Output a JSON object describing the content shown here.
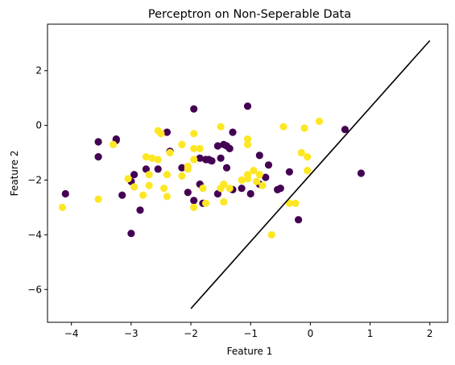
{
  "chart_data": {
    "type": "scatter",
    "title": "Perceptron on Non-Seperable Data",
    "xlabel": "Feature 1",
    "ylabel": "Feature 2",
    "xlim": [
      -4.4,
      2.3
    ],
    "ylim": [
      -7.2,
      3.7
    ],
    "xticks": [
      -4,
      -3,
      -2,
      -1,
      0,
      1,
      2
    ],
    "yticks": [
      -6,
      -4,
      -2,
      0,
      2
    ],
    "xtick_labels": [
      "−4",
      "−3",
      "−2",
      "−1",
      "0",
      "1",
      "2"
    ],
    "ytick_labels": [
      "−6",
      "−4",
      "−2",
      "0",
      "2"
    ],
    "grid": false,
    "colors": {
      "class_0": "#440154",
      "class_1": "#fde725",
      "line": "#000000"
    },
    "series": [
      {
        "color": "#440154",
        "points": [
          [
            -4.1,
            -2.5
          ],
          [
            -3.55,
            -0.6
          ],
          [
            -3.55,
            -1.15
          ],
          [
            -3.25,
            -0.5
          ],
          [
            -3.25,
            -0.55
          ],
          [
            -3.15,
            -2.55
          ],
          [
            -3.0,
            -2.05
          ],
          [
            -2.95,
            -1.8
          ],
          [
            -3.0,
            -3.95
          ],
          [
            -2.85,
            -3.1
          ],
          [
            -2.75,
            -1.6
          ],
          [
            -2.55,
            -1.6
          ],
          [
            -2.4,
            -0.25
          ],
          [
            -2.35,
            -0.95
          ],
          [
            -2.15,
            -1.55
          ],
          [
            -2.05,
            -2.45
          ],
          [
            -1.95,
            -2.75
          ],
          [
            -1.8,
            -2.85
          ],
          [
            -1.95,
            0.6
          ],
          [
            -1.85,
            -2.15
          ],
          [
            -1.85,
            -1.2
          ],
          [
            -1.75,
            -1.25
          ],
          [
            -1.7,
            -1.25
          ],
          [
            -1.65,
            -1.3
          ],
          [
            -1.55,
            -0.75
          ],
          [
            -1.45,
            -0.7
          ],
          [
            -1.4,
            -0.75
          ],
          [
            -1.35,
            -0.85
          ],
          [
            -1.5,
            -1.2
          ],
          [
            -1.4,
            -1.55
          ],
          [
            -1.55,
            -2.5
          ],
          [
            -1.3,
            -0.25
          ],
          [
            -1.3,
            -2.35
          ],
          [
            -1.15,
            -2.3
          ],
          [
            -1.05,
            0.7
          ],
          [
            -1.0,
            -2.5
          ],
          [
            -0.85,
            -1.1
          ],
          [
            -0.85,
            -2.15
          ],
          [
            -0.75,
            -1.9
          ],
          [
            -0.7,
            -1.45
          ],
          [
            -0.55,
            -2.35
          ],
          [
            -0.5,
            -2.3
          ],
          [
            -0.35,
            -1.7
          ],
          [
            -0.2,
            -3.45
          ],
          [
            0.58,
            -0.15
          ],
          [
            0.85,
            -1.75
          ]
        ]
      },
      {
        "color": "#fde725",
        "points": [
          [
            -4.15,
            -3.0
          ],
          [
            -3.55,
            -2.7
          ],
          [
            -3.3,
            -0.7
          ],
          [
            -3.05,
            -1.95
          ],
          [
            -2.95,
            -2.25
          ],
          [
            -2.8,
            -2.55
          ],
          [
            -2.75,
            -1.15
          ],
          [
            -2.7,
            -1.8
          ],
          [
            -2.65,
            -1.2
          ],
          [
            -2.7,
            -2.2
          ],
          [
            -2.55,
            -0.2
          ],
          [
            -2.5,
            -0.3
          ],
          [
            -2.55,
            -1.25
          ],
          [
            -2.45,
            -2.3
          ],
          [
            -2.4,
            -1.8
          ],
          [
            -2.4,
            -2.6
          ],
          [
            -2.35,
            -1.0
          ],
          [
            -2.15,
            -0.7
          ],
          [
            -2.15,
            -1.85
          ],
          [
            -2.05,
            -1.5
          ],
          [
            -2.05,
            -1.6
          ],
          [
            -1.95,
            -0.85
          ],
          [
            -1.95,
            -1.25
          ],
          [
            -1.95,
            -3.0
          ],
          [
            -1.95,
            -0.3
          ],
          [
            -1.85,
            -0.85
          ],
          [
            -1.8,
            -2.3
          ],
          [
            -1.75,
            -2.85
          ],
          [
            -1.5,
            -0.05
          ],
          [
            -1.5,
            -2.3
          ],
          [
            -1.45,
            -2.15
          ],
          [
            -1.45,
            -2.8
          ],
          [
            -1.35,
            -2.3
          ],
          [
            -1.15,
            -2.0
          ],
          [
            -1.05,
            -0.5
          ],
          [
            -1.05,
            -0.7
          ],
          [
            -1.05,
            -1.8
          ],
          [
            -1.05,
            -1.95
          ],
          [
            -0.9,
            -2.05
          ],
          [
            -0.85,
            -1.8
          ],
          [
            -0.8,
            -2.2
          ],
          [
            -0.65,
            -4.0
          ],
          [
            -0.45,
            -0.05
          ],
          [
            -0.35,
            -2.85
          ],
          [
            -0.25,
            -2.85
          ],
          [
            -0.15,
            -1.0
          ],
          [
            -0.1,
            -0.1
          ],
          [
            -0.05,
            -1.15
          ],
          [
            -0.05,
            -1.65
          ],
          [
            0.15,
            0.15
          ],
          [
            -0.95,
            -1.65
          ]
        ]
      }
    ],
    "decision_line": {
      "x": [
        -2.0,
        2.0
      ],
      "y": [
        -6.7,
        3.1
      ]
    }
  }
}
